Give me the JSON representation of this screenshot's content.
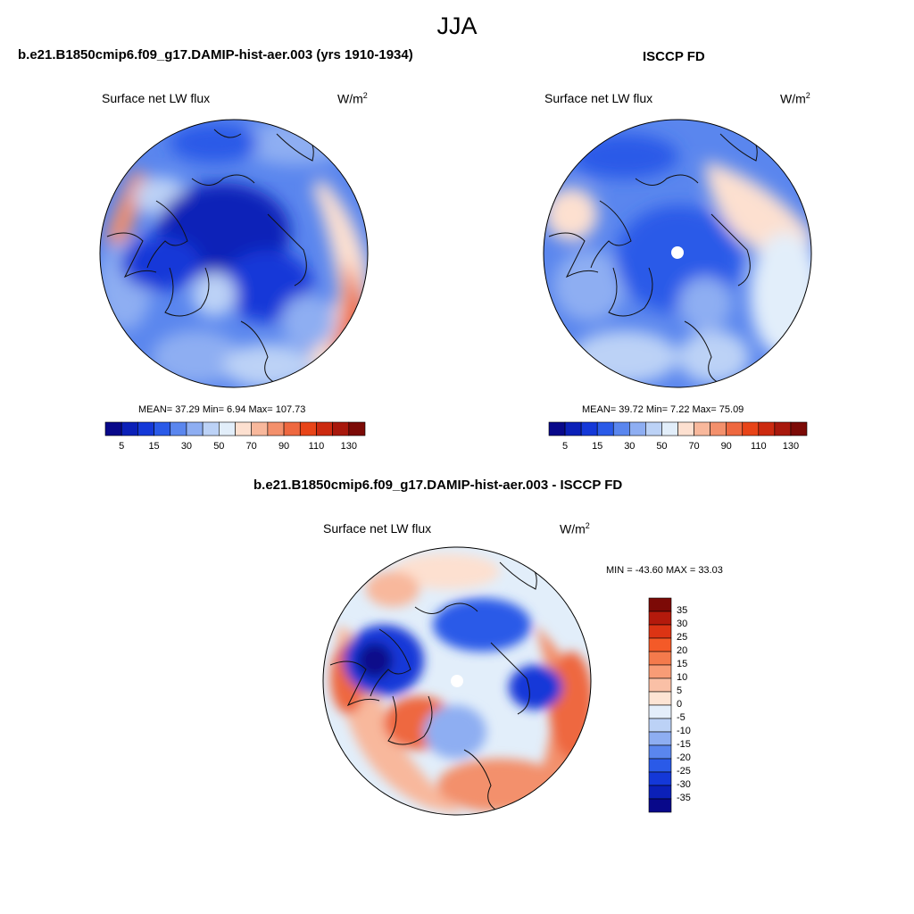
{
  "season": "JJA",
  "panels": [
    {
      "id": "model",
      "title": "b.e21.B1850cmip6.f09_g17.DAMIP-hist-aer.003 (yrs 1910-1934)",
      "variable": "Surface net LW flux",
      "units": "W/m",
      "units_sup": "2",
      "stats": {
        "mean": "37.29",
        "min": "6.94",
        "max": "107.73"
      },
      "stats_text": "MEAN=  37.29  Min=   6.94  Max= 107.73"
    },
    {
      "id": "obs",
      "title": "ISCCP FD",
      "variable": "Surface net LW flux",
      "units": "W/m",
      "units_sup": "2",
      "stats": {
        "mean": "39.72",
        "min": "7.22",
        "max": "75.09"
      },
      "stats_text": "MEAN=  39.72  Min=   7.22  Max=  75.09"
    },
    {
      "id": "diff",
      "title": "b.e21.B1850cmip6.f09_g17.DAMIP-hist-aer.003 - ISCCP FD",
      "variable": "Surface net LW flux",
      "units": "W/m",
      "units_sup": "2",
      "stats": {
        "min": "-43.60",
        "max": "33.03"
      },
      "stats_text": "MIN = -43.60 MAX =  33.03"
    }
  ],
  "abs_colorbar": {
    "ticks": [
      "5",
      "15",
      "30",
      "50",
      "70",
      "90",
      "110",
      "130"
    ],
    "colors": [
      "#08088a",
      "#0b20b8",
      "#1438d8",
      "#2a5ae8",
      "#5a86ee",
      "#8eaef2",
      "#bcd2f6",
      "#e2eefa",
      "#fde0d0",
      "#f8b89c",
      "#f3906c",
      "#ee6840",
      "#e84418",
      "#cc2a10",
      "#a8180c",
      "#7c0a06"
    ]
  },
  "diff_colorbar": {
    "ticks": [
      "35",
      "30",
      "25",
      "20",
      "15",
      "10",
      "5",
      "0",
      "-5",
      "-10",
      "-15",
      "-20",
      "-25",
      "-30",
      "-35"
    ],
    "colors": [
      "#7c0a06",
      "#b41a0c",
      "#dc3414",
      "#f45a28",
      "#f47a4c",
      "#f89c76",
      "#fac0a6",
      "#fde4d4",
      "#e4eefa",
      "#bcd2f6",
      "#8eaef2",
      "#5a86ee",
      "#2a5ae8",
      "#1438d8",
      "#0b20b8",
      "#08088a"
    ]
  }
}
